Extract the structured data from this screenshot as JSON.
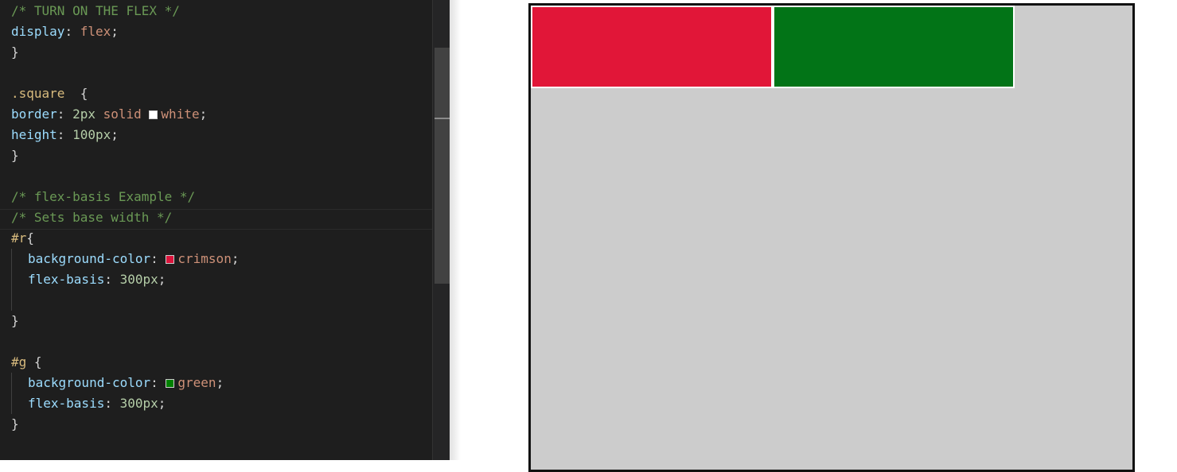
{
  "editor": {
    "lines": [
      {
        "tokens": [
          {
            "t": "/* TURN ON THE FLEX */",
            "k": "comment"
          }
        ]
      },
      {
        "tokens": [
          {
            "t": "display",
            "k": "prop"
          },
          {
            "t": ": ",
            "k": "punct"
          },
          {
            "t": "flex",
            "k": "val"
          },
          {
            "t": ";",
            "k": "punct"
          }
        ]
      },
      {
        "tokens": [
          {
            "t": "}",
            "k": "punct"
          }
        ]
      },
      {
        "tokens": []
      },
      {
        "tokens": [
          {
            "t": ".square  ",
            "k": "sel"
          },
          {
            "t": "{",
            "k": "punct"
          }
        ]
      },
      {
        "tokens": [
          {
            "t": "border",
            "k": "prop"
          },
          {
            "t": ": ",
            "k": "punct"
          },
          {
            "t": "2px",
            "k": "num"
          },
          {
            "t": " ",
            "k": "punct"
          },
          {
            "t": "solid",
            "k": "val"
          },
          {
            "t": " ",
            "k": "punct"
          },
          {
            "swatch": "#ffffff"
          },
          {
            "t": "white",
            "k": "val"
          },
          {
            "t": ";",
            "k": "punct"
          }
        ]
      },
      {
        "tokens": [
          {
            "t": "height",
            "k": "prop"
          },
          {
            "t": ": ",
            "k": "punct"
          },
          {
            "t": "100px",
            "k": "num"
          },
          {
            "t": ";",
            "k": "punct"
          }
        ]
      },
      {
        "tokens": [
          {
            "t": "}",
            "k": "punct"
          }
        ]
      },
      {
        "tokens": []
      },
      {
        "tokens": [
          {
            "t": "/* flex-basis Example */",
            "k": "comment"
          }
        ]
      },
      {
        "tokens": [
          {
            "t": "/* Sets base width */",
            "k": "comment"
          }
        ]
      },
      {
        "tokens": [
          {
            "t": "#r",
            "k": "sel"
          },
          {
            "t": "{",
            "k": "punct"
          }
        ]
      },
      {
        "indent": true,
        "tokens": [
          {
            "t": "background-color",
            "k": "prop"
          },
          {
            "t": ": ",
            "k": "punct"
          },
          {
            "swatch": "#dc143c"
          },
          {
            "t": "crimson",
            "k": "val"
          },
          {
            "t": ";",
            "k": "punct"
          }
        ]
      },
      {
        "indent": true,
        "tokens": [
          {
            "t": "flex-basis",
            "k": "prop"
          },
          {
            "t": ": ",
            "k": "punct"
          },
          {
            "t": "300px",
            "k": "num"
          },
          {
            "t": ";",
            "k": "punct"
          }
        ]
      },
      {
        "tokens": []
      },
      {
        "tokens": [
          {
            "t": "}",
            "k": "punct"
          }
        ]
      },
      {
        "tokens": []
      },
      {
        "tokens": [
          {
            "t": "#g",
            "k": "sel"
          },
          {
            "t": " {",
            "k": "punct"
          }
        ]
      },
      {
        "indent": true,
        "tokens": [
          {
            "t": "background-color",
            "k": "prop"
          },
          {
            "t": ": ",
            "k": "punct"
          },
          {
            "swatch": "#008000"
          },
          {
            "t": "green",
            "k": "val"
          },
          {
            "t": ";",
            "k": "punct"
          }
        ]
      },
      {
        "indent": true,
        "tokens": [
          {
            "t": "flex-basis",
            "k": "prop"
          },
          {
            "t": ": ",
            "k": "punct"
          },
          {
            "t": "300px",
            "k": "num"
          },
          {
            "t": ";",
            "k": "punct"
          }
        ]
      },
      {
        "tokens": [
          {
            "t": "}",
            "k": "punct"
          }
        ]
      }
    ]
  },
  "preview": {
    "container_color": "#cccccc",
    "items": [
      {
        "id": "r",
        "color": "#e11638"
      },
      {
        "id": "g",
        "color": "#027417"
      }
    ]
  }
}
